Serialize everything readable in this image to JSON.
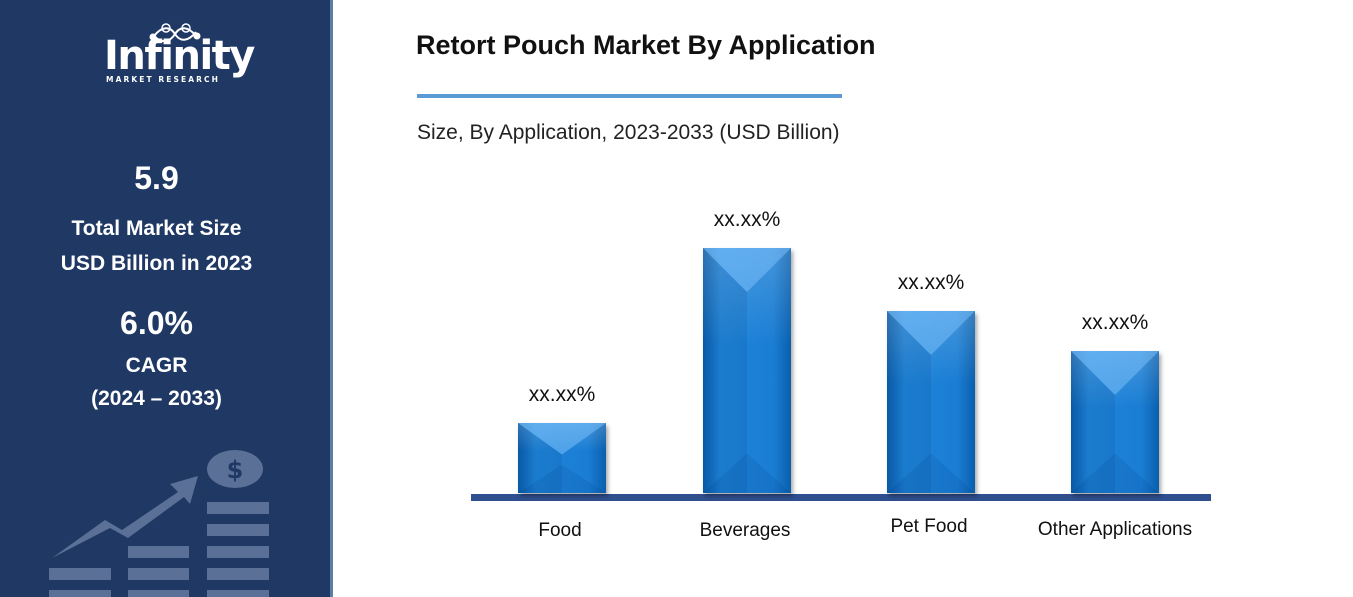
{
  "brand": {
    "name": "Infinity",
    "tagline": "MARKET RESEARCH"
  },
  "sidebar": {
    "market_size_value": "5.9",
    "market_size_label_1": "Total Market Size",
    "market_size_label_2": "USD Billion in 2023",
    "cagr_value": "6.0%",
    "cagr_label": "CAGR",
    "cagr_period": "(2024 – 2033)",
    "decor_icons": [
      "growth-arrow-icon",
      "dollar-coin-icon",
      "bar-stack-icon"
    ]
  },
  "colors": {
    "sidebar_bg": "#1f3864",
    "accent_rule": "#5b9bd5",
    "bar_fill": "#1a7dd3",
    "axis": "#2f4f8f"
  },
  "chart_data": {
    "type": "bar",
    "title": "Retort Pouch Market By Application",
    "subtitle": "Size, By Application, 2023-2033 (USD Billion)",
    "xlabel": "",
    "ylabel": "",
    "categories": [
      "Food",
      "Beverages",
      "Pet Food",
      "Other Applications"
    ],
    "values": [
      70,
      245,
      182,
      142
    ],
    "value_units": "relative bar height (px); actual values masked",
    "data_labels": [
      "xx.xx%",
      "xx.xx%",
      "xx.xx%",
      "xx.xx%"
    ],
    "grid": false,
    "legend": "none",
    "y_axis_visible": false
  }
}
